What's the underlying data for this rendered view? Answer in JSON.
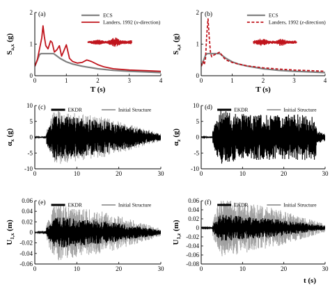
{
  "chart_data": [
    {
      "panel": "(a)",
      "type": "line",
      "ylabel_main": "S",
      "ylabel_sub": "a,x",
      "ylabel_unit": " (g)",
      "xlabel": "T (s)",
      "xlim": [
        0,
        4
      ],
      "ylim": [
        0,
        2
      ],
      "xticks": [
        0,
        1,
        2,
        3,
        4
      ],
      "yticks": [
        0,
        1,
        2
      ],
      "series": [
        {
          "name": "ECS",
          "color": "#808080",
          "style": "solid",
          "x": [
            0,
            0.15,
            0.2,
            0.6,
            0.8,
            1.0,
            1.2,
            1.5,
            2.0,
            2.5,
            3.0,
            3.5,
            4.0
          ],
          "y": [
            0.3,
            0.67,
            0.7,
            0.7,
            0.55,
            0.44,
            0.37,
            0.3,
            0.22,
            0.17,
            0.14,
            0.12,
            0.1
          ]
        },
        {
          "name_prefix": "Landers, 1992 (",
          "name_italic": "x",
          "name_suffix": "-direction)",
          "color": "#c0141c",
          "style": "solid",
          "x": [
            0,
            0.08,
            0.15,
            0.22,
            0.26,
            0.3,
            0.35,
            0.42,
            0.5,
            0.55,
            0.62,
            0.7,
            0.78,
            0.85,
            0.92,
            1.0,
            1.1,
            1.2,
            1.35,
            1.5,
            1.65,
            1.8,
            2.0,
            2.2,
            2.5,
            3.0,
            3.5,
            4.0
          ],
          "y": [
            0.3,
            0.5,
            0.85,
            1.2,
            1.58,
            1.25,
            0.95,
            0.85,
            1.1,
            1.05,
            0.75,
            0.82,
            0.95,
            0.62,
            0.78,
            0.98,
            0.55,
            0.45,
            0.4,
            0.42,
            0.5,
            0.45,
            0.35,
            0.28,
            0.22,
            0.18,
            0.16,
            0.14
          ]
        }
      ],
      "inset": "waveform"
    },
    {
      "panel": "(b)",
      "type": "line",
      "ylabel_main": "S",
      "ylabel_sub": "a,z",
      "ylabel_unit": " (g)",
      "xlabel": "T (s)",
      "xlim": [
        0,
        4
      ],
      "ylim": [
        0,
        2
      ],
      "xticks": [
        0,
        1,
        2,
        3,
        4
      ],
      "yticks": [
        0,
        1,
        2
      ],
      "series": [
        {
          "name": "ECS",
          "color": "#808080",
          "style": "solid",
          "x": [
            0,
            0.15,
            0.2,
            0.6,
            0.8,
            1.0,
            1.2,
            1.5,
            2.0,
            2.5,
            3.0,
            3.5,
            4.0
          ],
          "y": [
            0.3,
            0.67,
            0.7,
            0.7,
            0.55,
            0.44,
            0.37,
            0.3,
            0.22,
            0.17,
            0.14,
            0.12,
            0.1
          ]
        },
        {
          "name_prefix": "Landers, 1992 (",
          "name_italic": "z",
          "name_suffix": "-direction)",
          "color": "#c0141c",
          "style": "dashed",
          "x": [
            0,
            0.06,
            0.1,
            0.14,
            0.18,
            0.22,
            0.26,
            0.3,
            0.34,
            0.4,
            0.5,
            0.6,
            0.7,
            0.8,
            1.0,
            1.2,
            1.5,
            2.0,
            2.5,
            3.0,
            3.5,
            4.0
          ],
          "y": [
            0.3,
            0.45,
            0.35,
            0.55,
            1.3,
            1.8,
            1.2,
            0.72,
            0.6,
            0.65,
            0.7,
            0.75,
            0.6,
            0.5,
            0.42,
            0.37,
            0.31,
            0.25,
            0.21,
            0.18,
            0.16,
            0.14
          ]
        }
      ],
      "inset": "waveform"
    },
    {
      "panel": "(c)",
      "type": "line",
      "ylabel_main": "α",
      "ylabel_sub": "x",
      "ylabel_unit": " (g)",
      "xlabel": "",
      "xlim": [
        0,
        30
      ],
      "ylim": [
        -10,
        10
      ],
      "xticks": [
        0,
        10,
        20,
        30
      ],
      "yticks": [
        -10,
        -5,
        0,
        5,
        10
      ],
      "series": [
        {
          "name": "EKDR",
          "color": "#000000",
          "style": "solid",
          "amplitude": 7.2
        },
        {
          "name": "Initial Structure",
          "color": "#a0a0a0",
          "style": "solid",
          "amplitude": 8.8
        }
      ]
    },
    {
      "panel": "(d)",
      "type": "line",
      "ylabel_main": "α",
      "ylabel_sub": "z",
      "ylabel_unit": " (g)",
      "xlabel": "",
      "xlim": [
        0,
        30
      ],
      "ylim": [
        -10,
        10
      ],
      "xticks": [
        0,
        10,
        20,
        30
      ],
      "yticks": [
        -10,
        -5,
        0,
        5,
        10
      ],
      "series": [
        {
          "name": "EKDR",
          "color": "#000000",
          "style": "solid",
          "amplitude": 8.5
        },
        {
          "name": "Initial Structure",
          "color": "#a0a0a0",
          "style": "solid",
          "amplitude": 6.0
        }
      ]
    },
    {
      "panel": "(e)",
      "type": "line",
      "ylabel_main": "U",
      "ylabel_sub": "1,x",
      "ylabel_unit": " (m)",
      "xlabel": "",
      "xlim": [
        0,
        30
      ],
      "ylim": [
        -0.06,
        0.06
      ],
      "xticks": [
        0,
        10,
        20,
        30
      ],
      "yticks": [
        -0.06,
        -0.04,
        -0.02,
        0,
        0.02,
        0.04,
        0.06
      ],
      "series": [
        {
          "name": "EKDR",
          "color": "#000000",
          "style": "solid",
          "amplitude": 0.03
        },
        {
          "name": "Initial Structure",
          "color": "#a0a0a0",
          "style": "solid",
          "amplitude": 0.055
        }
      ]
    },
    {
      "panel": "(f)",
      "type": "line",
      "ylabel_main": "U",
      "ylabel_sub": "1,z",
      "ylabel_unit": " (m)",
      "xlabel": "t (s)",
      "xlim": [
        0,
        30
      ],
      "ylim": [
        -0.08,
        0.06
      ],
      "xticks": [
        0,
        10,
        20,
        30
      ],
      "yticks": [
        -0.08,
        -0.06,
        -0.04,
        -0.02,
        0,
        0.02,
        0.04,
        0.06
      ],
      "series": [
        {
          "name": "EKDR",
          "color": "#000000",
          "style": "solid",
          "amplitude": 0.03
        },
        {
          "name": "Initial Structure",
          "color": "#a0a0a0",
          "style": "solid",
          "amplitude": 0.065
        }
      ]
    }
  ]
}
